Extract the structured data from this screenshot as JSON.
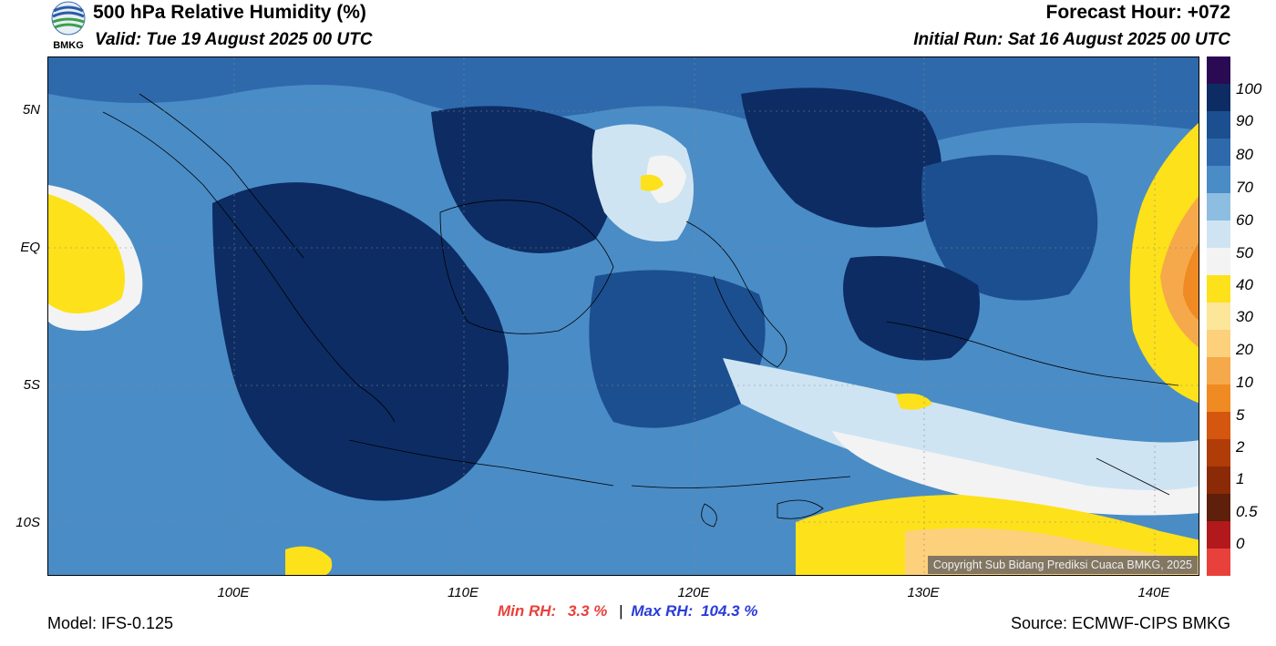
{
  "header": {
    "title": "500 hPa Relative Humidity (%)",
    "valid": "Valid: Tue 19 August 2025 00 UTC",
    "forecast_hour": "Forecast Hour: +072",
    "initial_run": "Initial Run: Sat 16 August 2025 00 UTC",
    "logo_text": "BMKG"
  },
  "map": {
    "region": "Indonesia",
    "lat_labels": [
      "5N",
      "EQ",
      "5S",
      "10S"
    ],
    "lon_labels": [
      "100E",
      "110E",
      "120E",
      "130E",
      "140E"
    ],
    "copyright": "Copyright Sub Bidang Prediksi Cuaca BMKG, 2025"
  },
  "colorbar": {
    "labels": [
      "100",
      "90",
      "80",
      "70",
      "60",
      "50",
      "40",
      "30",
      "20",
      "10",
      "5",
      "2",
      "1",
      "0.5",
      "0"
    ],
    "colors": [
      "#2a0a52",
      "#0d2c63",
      "#1c4f8f",
      "#2e69ac",
      "#4a8cc6",
      "#8dbde0",
      "#cfe4f2",
      "#f3f3f3",
      "#fde11a",
      "#fbe69a",
      "#fdd07c",
      "#f6a94a",
      "#f08a22",
      "#d4560f",
      "#b03c07",
      "#8a2a07",
      "#5e1f0b",
      "#b2191c",
      "#e8413c"
    ]
  },
  "stats": {
    "min_label": "Min RH:",
    "min_value": "3.3 %",
    "separator": "|",
    "max_label": "Max RH:",
    "max_value": "104.3 %"
  },
  "footer": {
    "model": "Model: IFS-0.125",
    "source": "Source: ECMWF-CIPS BMKG"
  }
}
